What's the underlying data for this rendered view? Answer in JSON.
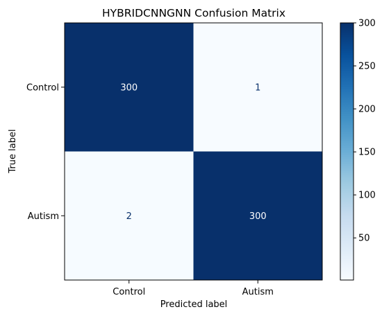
{
  "chart_data": {
    "type": "heatmap",
    "title": "HYBRIDCNNGNN Confusion Matrix",
    "xlabel": "Predicted label",
    "ylabel": "True label",
    "x_categories": [
      "Control",
      "Autism"
    ],
    "y_categories": [
      "Control",
      "Autism"
    ],
    "values": [
      [
        300,
        1
      ],
      [
        2,
        300
      ]
    ],
    "colormap": "Blues",
    "colorbar": {
      "min": 1,
      "max": 300,
      "ticks": [
        50,
        100,
        150,
        200,
        250,
        300
      ]
    },
    "grid": false
  },
  "colors": {
    "low": "#f7fbff",
    "high": "#08306b",
    "text_on_dark": "#ffffff",
    "text_on_light": "#08306b"
  }
}
